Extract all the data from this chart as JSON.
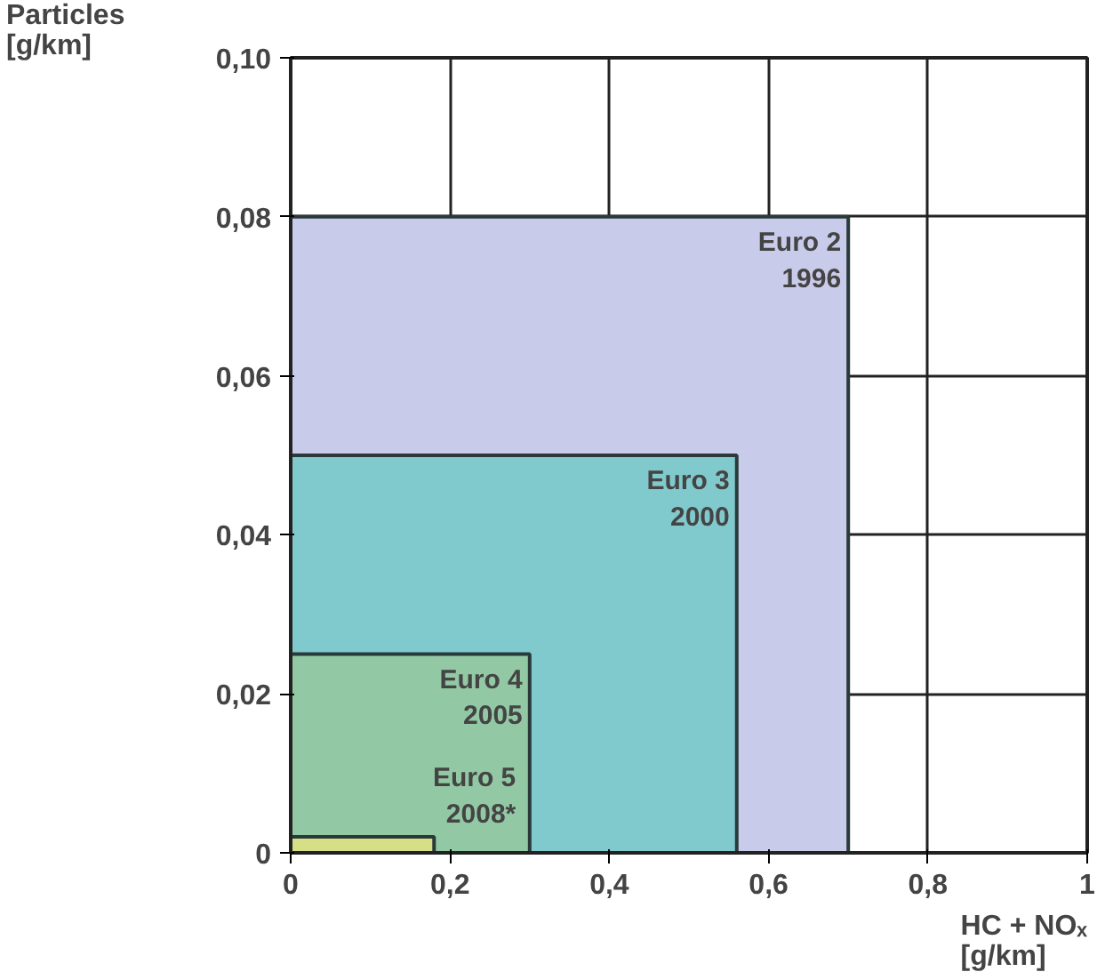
{
  "chart_data": {
    "type": "area",
    "xlabel": "HC + NOₓ\n[g/km]",
    "ylabel": "Particles\n[g/km]",
    "xlim": [
      0,
      1
    ],
    "ylim": [
      0,
      0.1
    ],
    "xticks": [
      0,
      {
        "value": 0.2,
        "label": "0,2"
      },
      {
        "value": 0.4,
        "label": "0,4"
      },
      {
        "value": 0.6,
        "label": "0,6"
      },
      {
        "value": 0.8,
        "label": "0,8"
      },
      1
    ],
    "yticks": [
      0,
      {
        "value": 0.02,
        "label": "0,02"
      },
      {
        "value": 0.04,
        "label": "0,04"
      },
      {
        "value": 0.06,
        "label": "0,06"
      },
      {
        "value": 0.08,
        "label": "0,08"
      },
      {
        "value": 0.1,
        "label": "0,10"
      }
    ],
    "grid": true,
    "series": [
      {
        "name": "Euro 2\n1996",
        "color": "#c8cbea",
        "x": [
          0,
          0.7,
          0.7
        ],
        "values": [
          0.08,
          0.08,
          0
        ]
      },
      {
        "name": "Euro 3\n2000",
        "color": "#80c9cc",
        "x": [
          0,
          0.56,
          0.56
        ],
        "values": [
          0.05,
          0.05,
          0
        ]
      },
      {
        "name": "Euro 4\n2005",
        "color": "#92c9a4",
        "x": [
          0,
          0.3,
          0.3
        ],
        "values": [
          0.025,
          0.025,
          0
        ]
      },
      {
        "name": "Euro 5\n2008*",
        "color": "#d6df86",
        "x": [
          0,
          0.18,
          0.18
        ],
        "values": [
          0.002,
          0.002,
          0
        ]
      }
    ]
  }
}
